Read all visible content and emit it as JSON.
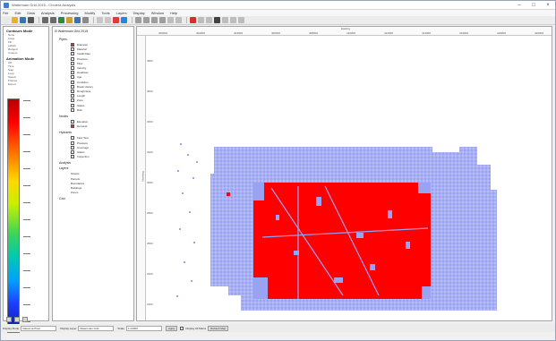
{
  "window": {
    "title": "Watermain Grid 2015 - Cholera Analysis"
  },
  "menus": [
    "File",
    "Edit",
    "Data",
    "Analysis",
    "Processing",
    "Modify",
    "Tools",
    "Layers",
    "Display",
    "Window",
    "Help"
  ],
  "toolbar": {
    "buttons": [
      {
        "icon": "new-icon",
        "color": "#e8e8e8"
      },
      {
        "icon": "open-folder-icon",
        "color": "#e6b422"
      },
      {
        "icon": "save-icon",
        "color": "#3d6fb6"
      },
      {
        "icon": "print-icon",
        "color": "#555555"
      },
      {
        "icon": "undo-icon",
        "color": "#6a6a6a"
      },
      {
        "icon": "redo-icon",
        "color": "#6a6a6a"
      },
      {
        "icon": "layer-icon",
        "color": "#2f8a3c"
      },
      {
        "icon": "legend-icon",
        "color": "#c9a227"
      },
      {
        "icon": "chart-icon",
        "color": "#3d6fb6"
      },
      {
        "icon": "table-icon",
        "color": "#8a8a8a"
      },
      {
        "icon": "filter-icon",
        "color": "#c7c7c7"
      },
      {
        "icon": "select-icon",
        "color": "#c7c7c7"
      },
      {
        "icon": "run-icon",
        "color": "#e53935"
      },
      {
        "icon": "stop-icon",
        "color": "#1e88e5"
      },
      {
        "icon": "zoom-in-icon",
        "color": "#9e9e9e"
      },
      {
        "icon": "zoom-out-icon",
        "color": "#9e9e9e"
      },
      {
        "icon": "pan-icon",
        "color": "#9e9e9e"
      },
      {
        "icon": "pointer-icon",
        "color": "#9e9e9e"
      },
      {
        "icon": "measure-icon",
        "color": "#bdbdbd"
      },
      {
        "icon": "identify-icon",
        "color": "#bdbdbd"
      },
      {
        "icon": "flag-icon",
        "color": "#d32f2f"
      },
      {
        "icon": "refresh-icon",
        "color": "#bdbdbd"
      },
      {
        "icon": "grid-icon",
        "color": "#bdbdbd"
      },
      {
        "icon": "camera-icon",
        "color": "#424242"
      },
      {
        "icon": "export-icon",
        "color": "#bdbdbd"
      },
      {
        "icon": "settings-icon",
        "color": "#bdbdbd"
      },
      {
        "icon": "help-icon",
        "color": "#bdbdbd"
      }
    ]
  },
  "legend_panel": {
    "section1_title": "Contours Mode",
    "section1_lines": [
      "None",
      "Lines",
      "Fill",
      "Labels",
      "Ranged",
      "Custom"
    ],
    "section2_title": "Animation Mode",
    "section2_lines": [
      "Off",
      "Time",
      "Step",
      "Loop",
      "Speed",
      "Frames",
      "Export"
    ],
    "ramp_colors": [
      "#b80000",
      "#ff0000",
      "#ff6a00",
      "#ffd800",
      "#3ad45a",
      "#00c8b4",
      "#00a0ff",
      "#1f3cff",
      "#0a1a9e"
    ]
  },
  "tree": {
    "root": "Watermain Grid 2015",
    "sec1": "Pipes",
    "sec1_items": [
      "Diameter",
      "Material",
      "Install Date",
      "Pressure",
      "Flow",
      "Velocity",
      "Headloss",
      "Age",
      "Condition",
      "Break History",
      "Roughness",
      "Length",
      "Zone",
      "Status",
      "Risk"
    ],
    "sec2": "Nodes",
    "sec2_items": [
      "Elevation",
      "Demand"
    ],
    "sec3": "Hydrants",
    "sec3_items": [
      "Flow Test",
      "Pressure",
      "Coverage",
      "Status",
      "Inspection"
    ],
    "sec4": "Analysis",
    "sec5": "Layers",
    "sec5_items": [
      "Streets",
      "Parcels",
      "Boundaries",
      "Buildings",
      "Zones"
    ],
    "sec6": "Grid"
  },
  "map": {
    "top_ticks": [
      "400000",
      "402000",
      "404000",
      "406000",
      "408000",
      "410000",
      "412000",
      "414000",
      "416000",
      "418000",
      "420000"
    ],
    "left_ticks": [
      "3800",
      "3600",
      "3400",
      "3200",
      "3000",
      "2800",
      "2600",
      "2400",
      "2200"
    ],
    "ruler_title": "Easting",
    "left_ruler_title": "Northing",
    "background_color": "#ffffff",
    "grid_color": "#9aa3f2",
    "highlight_color": "#ff0000"
  },
  "statusbar": {
    "label1": "Display Mode",
    "select1": "Values at Pixel",
    "label2": "Display Layer",
    "select2": "Watermain Grid",
    "label3": "Scale",
    "select3": "1:24000",
    "btn_apply": "Apply",
    "check_label": "Display All Mains",
    "btn_refresh": "Refresh Map"
  }
}
